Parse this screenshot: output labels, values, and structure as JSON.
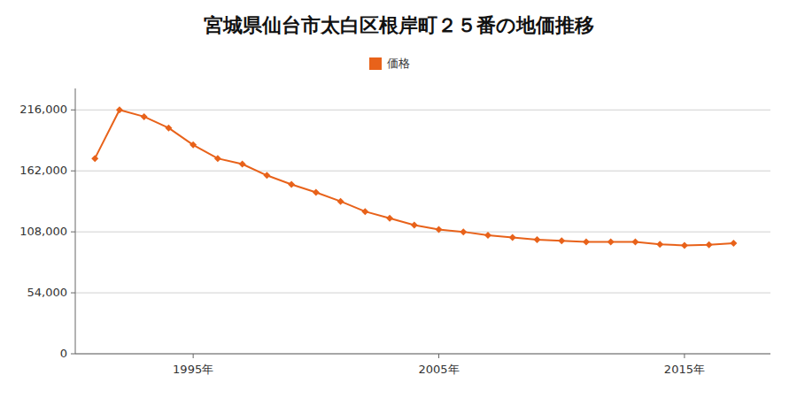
{
  "chart_data": {
    "type": "line",
    "title": "宮城県仙台市太白区根岸町２５番の地価推移",
    "x": [
      1991,
      1992,
      1993,
      1994,
      1995,
      1996,
      1997,
      1998,
      1999,
      2000,
      2001,
      2002,
      2003,
      2004,
      2005,
      2006,
      2007,
      2008,
      2009,
      2010,
      2011,
      2012,
      2013,
      2014,
      2015,
      2016,
      2017
    ],
    "series": [
      {
        "name": "価格",
        "color": "#e8621a",
        "marker": "diamond",
        "values": [
          173000,
          216000,
          210000,
          200000,
          185000,
          173000,
          168000,
          158000,
          150000,
          143000,
          135000,
          126000,
          120000,
          114000,
          110000,
          108000,
          105000,
          103000,
          101000,
          100000,
          99000,
          99000,
          99000,
          97000,
          96000,
          96500,
          98000
        ]
      }
    ],
    "xlim": [
      1990.2,
      2018.5
    ],
    "xticks": [
      {
        "value": 1995,
        "label": "1995年"
      },
      {
        "value": 2005,
        "label": "2005年"
      },
      {
        "value": 2015,
        "label": "2015年"
      }
    ],
    "ylim": [
      0,
      235000
    ],
    "yticks": [
      0,
      {
        "value": 54000,
        "label": "54,000"
      },
      {
        "value": 108000,
        "label": "108,000"
      },
      {
        "value": 162000,
        "label": "162,000"
      },
      {
        "value": 216000,
        "label": "216,000"
      }
    ],
    "grid": "y",
    "legend": "top"
  }
}
